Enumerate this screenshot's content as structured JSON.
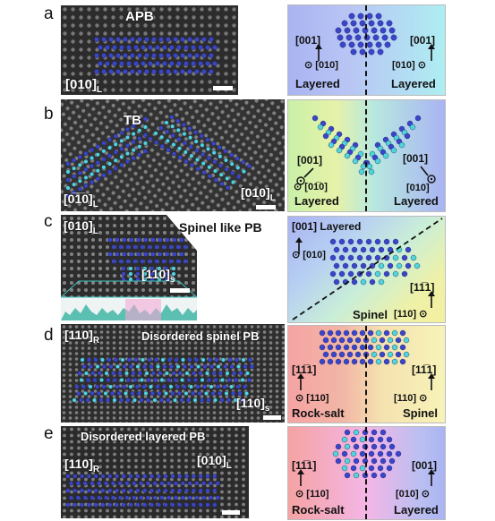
{
  "panels": {
    "a": {
      "letter": "a",
      "stem_title": "APB",
      "stem_axis": "[010]",
      "stem_axis_sub": "L",
      "left_dir": "[001]",
      "left_beam": "[010]",
      "left_phase": "Layered",
      "right_dir": "[001]",
      "right_beam": "[010]",
      "right_phase": "Layered"
    },
    "b": {
      "letter": "b",
      "stem_title": "TB",
      "stem_axis_left": "[0̅1̅0]",
      "stem_axis_left_sub": "L",
      "stem_axis_right": "[010]",
      "stem_axis_right_sub": "L",
      "left_dir": "[001]",
      "left_beam": "[01̅0]",
      "left_phase": "Layered",
      "right_dir": "[001]",
      "right_beam": "[010]",
      "right_phase": "Layered"
    },
    "c": {
      "letter": "c",
      "title": "Spinel like PB",
      "stem_axis": "[010]",
      "stem_axis_sub": "L",
      "stem_axis2": "[110]",
      "stem_axis2_sub": "s",
      "top_dir": "[001]",
      "top_phase": "Layered",
      "top_beam": "[010]",
      "right_dir": "[11̅1]",
      "bottom_phase": "Spinel",
      "bottom_beam": "[110]"
    },
    "d": {
      "letter": "d",
      "title": "Disordered spinel PB",
      "stem_axis": "[110]",
      "stem_axis_sub": "R",
      "stem_axis2": "[110]",
      "stem_axis2_sub": "s",
      "left_dir": "[11̅1]",
      "left_beam": "[110]",
      "left_phase": "Rock-salt",
      "right_dir": "[11̅1]",
      "right_beam": "[110]",
      "right_phase": "Spinel"
    },
    "e": {
      "letter": "e",
      "title": "Disordered layered PB",
      "stem_axis": "[110]",
      "stem_axis_sub": "R",
      "stem_axis2": "[010]",
      "stem_axis2_sub": "L",
      "left_dir": "[11̅1]",
      "left_beam": "[110]",
      "left_phase": "Rock-salt",
      "right_dir": "[001]",
      "right_beam": "[010]",
      "right_phase": "Layered"
    }
  },
  "colors": {
    "blue_atom": "#3a45c8",
    "cyan_atom": "#4fd6d6",
    "layered_bg": "#a9b4f2",
    "cyan_bg": "#aeeef2",
    "green_bg": "#c9f0a8",
    "yellow_bg": "#f6f3b8",
    "rocksalt_bg": "#f5a3a3",
    "pink_bg": "#f4b6e6"
  }
}
